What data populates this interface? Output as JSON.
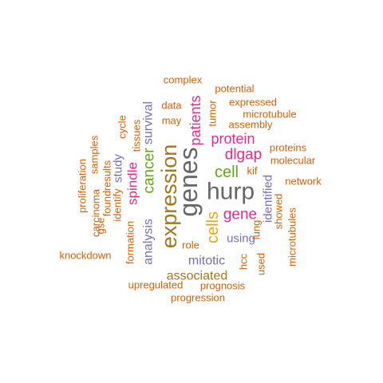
{
  "colors": {
    "background": "#ffffff",
    "orange": "#D95F02",
    "purple": "#7570B3",
    "magenta": "#E7298A",
    "green": "#66A61E",
    "gold": "#E6AB02",
    "brown": "#A6761D",
    "gray": "#666666"
  },
  "words": [
    {
      "text": "hurp",
      "color": "gray"
    },
    {
      "text": "genes",
      "color": "gray"
    },
    {
      "text": "expression",
      "color": "brown"
    },
    {
      "text": "cancer",
      "color": "green"
    },
    {
      "text": "cells",
      "color": "gold"
    },
    {
      "text": "gene",
      "color": "magenta"
    },
    {
      "text": "cell",
      "color": "green"
    },
    {
      "text": "dlgap",
      "color": "magenta"
    },
    {
      "text": "protein",
      "color": "magenta"
    },
    {
      "text": "patients",
      "color": "magenta"
    },
    {
      "text": "spindle",
      "color": "magenta"
    },
    {
      "text": "survival",
      "color": "purple"
    },
    {
      "text": "analysis",
      "color": "purple"
    },
    {
      "text": "mitotic",
      "color": "purple"
    },
    {
      "text": "associated",
      "color": "brown"
    },
    {
      "text": "using",
      "color": "purple"
    },
    {
      "text": "identified",
      "color": "purple"
    },
    {
      "text": "study",
      "color": "purple"
    },
    {
      "text": "complex",
      "color": "orange"
    },
    {
      "text": "potential",
      "color": "orange"
    },
    {
      "text": "data",
      "color": "orange"
    },
    {
      "text": "expressed",
      "color": "orange"
    },
    {
      "text": "microtubule",
      "color": "orange"
    },
    {
      "text": "may",
      "color": "orange"
    },
    {
      "text": "assembly",
      "color": "orange"
    },
    {
      "text": "tumor",
      "color": "orange"
    },
    {
      "text": "proteins",
      "color": "orange"
    },
    {
      "text": "molecular",
      "color": "orange"
    },
    {
      "text": "kif",
      "color": "orange"
    },
    {
      "text": "network",
      "color": "orange"
    },
    {
      "text": "tissues",
      "color": "orange"
    },
    {
      "text": "cycle",
      "color": "orange"
    },
    {
      "text": "samples",
      "color": "orange"
    },
    {
      "text": "proliferation",
      "color": "orange"
    },
    {
      "text": "results",
      "color": "orange"
    },
    {
      "text": "carcinoma",
      "color": "orange"
    },
    {
      "text": "identify",
      "color": "orange"
    },
    {
      "text": "found",
      "color": "orange"
    },
    {
      "text": "gse",
      "color": "orange"
    },
    {
      "text": "formation",
      "color": "orange"
    },
    {
      "text": "knockdown",
      "color": "orange"
    },
    {
      "text": "role",
      "color": "orange"
    },
    {
      "text": "hcc",
      "color": "orange"
    },
    {
      "text": "used",
      "color": "orange"
    },
    {
      "text": "lung",
      "color": "orange"
    },
    {
      "text": "showed",
      "color": "orange"
    },
    {
      "text": "microtubules",
      "color": "orange"
    },
    {
      "text": "upregulated",
      "color": "orange"
    },
    {
      "text": "prognosis",
      "color": "orange"
    },
    {
      "text": "progression",
      "color": "orange"
    }
  ]
}
